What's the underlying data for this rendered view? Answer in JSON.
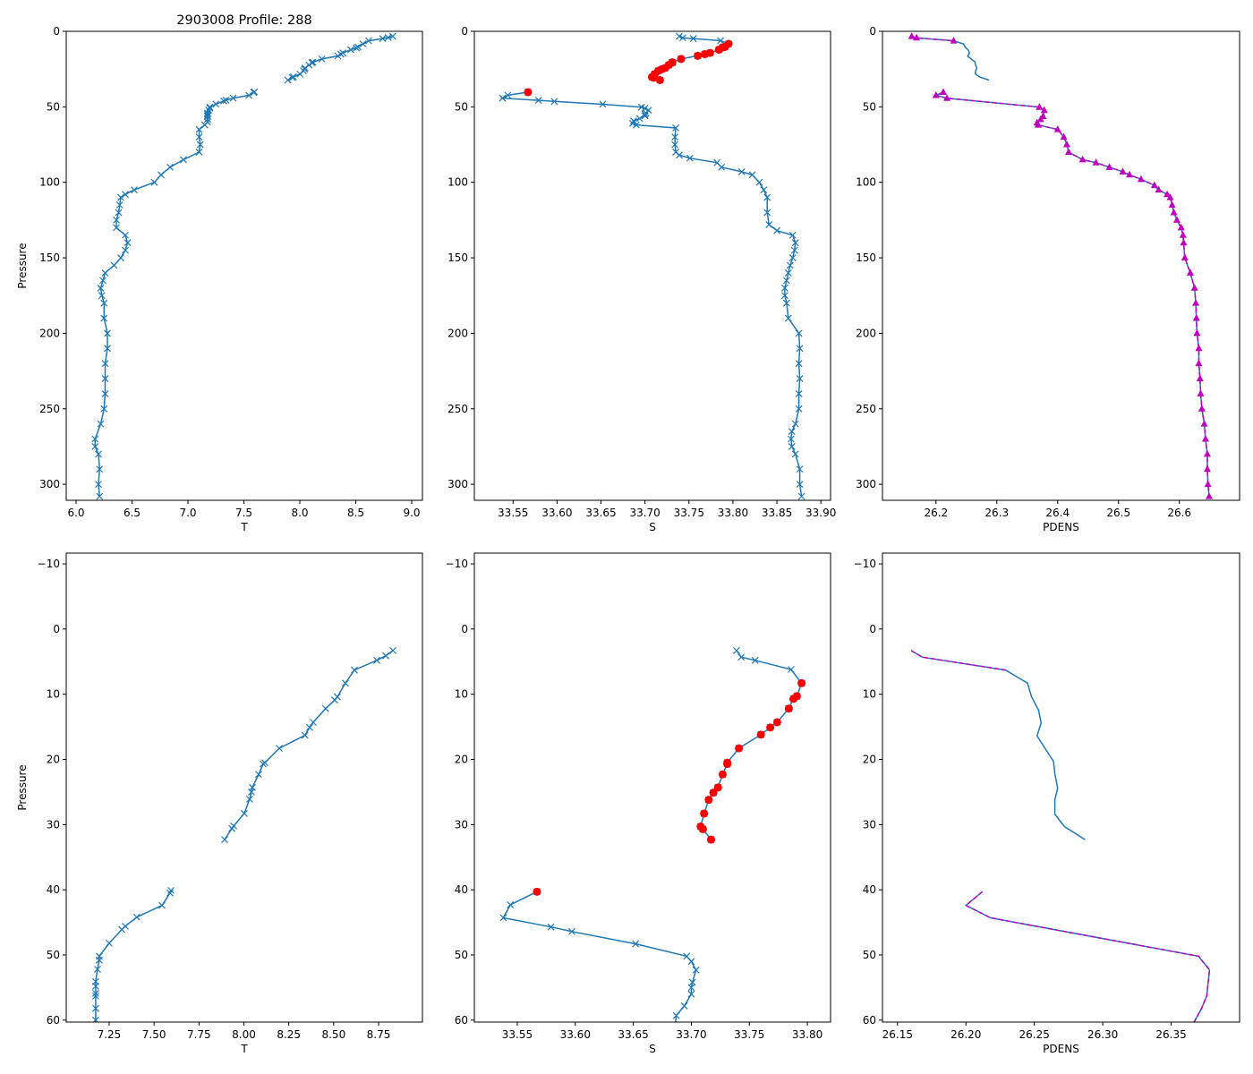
{
  "chart_data": {
    "type": "line",
    "title": "2903008 Profile: 288",
    "ylabel": "Pressure",
    "colors": {
      "line": "#1f77b4",
      "flagged": "#ff0000",
      "good_pdens": "#bf00bf"
    },
    "series": {
      "T": [
        [
          3.3,
          8.83,
          1
        ],
        [
          4.1,
          8.79,
          1
        ],
        [
          4.8,
          8.74,
          1
        ],
        [
          6.3,
          8.615,
          1
        ],
        [
          8.3,
          8.565,
          1
        ],
        [
          10.4,
          8.52,
          1
        ],
        [
          10.9,
          8.505,
          1
        ],
        [
          12.2,
          8.455,
          1
        ],
        [
          14.3,
          8.386,
          1
        ],
        [
          15.1,
          8.366,
          1
        ],
        [
          16.3,
          8.34,
          1
        ],
        [
          18.3,
          8.197,
          1
        ],
        [
          20.5,
          8.117,
          1
        ],
        [
          20.7,
          8.107,
          1
        ],
        [
          22.3,
          8.082,
          1
        ],
        [
          24.3,
          8.047,
          1
        ],
        [
          25.0,
          8.042,
          1
        ],
        [
          26.1,
          8.032,
          1
        ],
        [
          28.3,
          8.002,
          1
        ],
        [
          30.2,
          7.943,
          1
        ],
        [
          30.6,
          7.933,
          1
        ],
        [
          32.3,
          7.893,
          1
        ],
        null,
        [
          40.1,
          7.594,
          1
        ],
        [
          40.5,
          7.589,
          1
        ],
        [
          42.4,
          7.544,
          1
        ],
        [
          44.2,
          7.404,
          1
        ],
        [
          45.6,
          7.34,
          1
        ],
        [
          46.1,
          7.32,
          1
        ],
        [
          48.2,
          7.25,
          1
        ],
        [
          50.2,
          7.195,
          1
        ],
        [
          50.8,
          7.195,
          1
        ],
        [
          52.2,
          7.185,
          1
        ],
        [
          54.1,
          7.175,
          1
        ],
        [
          54.8,
          7.175,
          1
        ],
        [
          55.9,
          7.175,
          1
        ],
        [
          56.3,
          7.175,
          1
        ],
        [
          58.2,
          7.175,
          1
        ],
        [
          60.0,
          7.175,
          1
        ],
        [
          62,
          7.15,
          1
        ],
        [
          65,
          7.1,
          1
        ],
        [
          70,
          7.1,
          1
        ],
        [
          75,
          7.11,
          1
        ],
        [
          80,
          7.1,
          1
        ],
        [
          85,
          6.96,
          1
        ],
        [
          90,
          6.84,
          1
        ],
        [
          95,
          6.76,
          1
        ],
        [
          100,
          6.7,
          1
        ],
        [
          105,
          6.52,
          1
        ],
        [
          108,
          6.44,
          1
        ],
        [
          110,
          6.4,
          1
        ],
        [
          115,
          6.39,
          1
        ],
        [
          120,
          6.38,
          1
        ],
        [
          125,
          6.36,
          1
        ],
        [
          130,
          6.36,
          1
        ],
        [
          135,
          6.44,
          1
        ],
        [
          140,
          6.46,
          1
        ],
        [
          145,
          6.44,
          1
        ],
        [
          150,
          6.4,
          1
        ],
        [
          155,
          6.34,
          1
        ],
        [
          160,
          6.26,
          1
        ],
        [
          165,
          6.24,
          1
        ],
        [
          170,
          6.22,
          1
        ],
        [
          175,
          6.23,
          1
        ],
        [
          180,
          6.25,
          1
        ],
        [
          190,
          6.25,
          1
        ],
        [
          200,
          6.28,
          1
        ],
        [
          210,
          6.28,
          1
        ],
        [
          220,
          6.26,
          1
        ],
        [
          230,
          6.26,
          1
        ],
        [
          240,
          6.26,
          1
        ],
        [
          250,
          6.25,
          1
        ],
        [
          260,
          6.22,
          1
        ],
        [
          270,
          6.17,
          1
        ],
        [
          275,
          6.17,
          1
        ],
        [
          280,
          6.2,
          1
        ],
        [
          290,
          6.21,
          1
        ],
        [
          300,
          6.2,
          1
        ],
        [
          308,
          6.21,
          1
        ]
      ],
      "S": [
        [
          3.3,
          33.739,
          1
        ],
        [
          4.3,
          33.743,
          1
        ],
        [
          4.8,
          33.755,
          1
        ],
        [
          6.2,
          33.786,
          1
        ],
        [
          8.3,
          33.795,
          4
        ],
        [
          10.3,
          33.791,
          4
        ],
        [
          10.7,
          33.788,
          4
        ],
        [
          12.2,
          33.784,
          4
        ],
        [
          14.3,
          33.774,
          4
        ],
        [
          15.1,
          33.768,
          4
        ],
        [
          16.2,
          33.76,
          4
        ],
        [
          18.3,
          33.741,
          4
        ],
        [
          20.5,
          33.731,
          4
        ],
        [
          20.7,
          33.731,
          4
        ],
        [
          22.3,
          33.727,
          4
        ],
        [
          24.3,
          33.723,
          4
        ],
        [
          25.1,
          33.719,
          4
        ],
        [
          26.2,
          33.715,
          4
        ],
        [
          28.3,
          33.711,
          4
        ],
        [
          30.3,
          33.708,
          4
        ],
        [
          30.7,
          33.71,
          4
        ],
        [
          32.3,
          33.717,
          4
        ],
        null,
        [
          40.3,
          33.567,
          4
        ],
        [
          42.3,
          33.544,
          1
        ],
        [
          44.3,
          33.538,
          1
        ],
        [
          45.7,
          33.579,
          1
        ],
        [
          46.4,
          33.597,
          1
        ],
        [
          48.3,
          33.652,
          1
        ],
        [
          50.2,
          33.696,
          1
        ],
        [
          51.0,
          33.7,
          1
        ],
        [
          52.3,
          33.704,
          1
        ],
        [
          54.2,
          33.701,
          1
        ],
        [
          55.0,
          33.7,
          1
        ],
        [
          56.0,
          33.7,
          1
        ],
        [
          57.8,
          33.694,
          1
        ],
        [
          59.3,
          33.687,
          1
        ],
        [
          61,
          33.686,
          1
        ],
        [
          62,
          33.69,
          1
        ],
        [
          64,
          33.735,
          1
        ],
        [
          70,
          33.734,
          1
        ],
        [
          75,
          33.734,
          1
        ],
        [
          80,
          33.735,
          1
        ],
        [
          82,
          33.739,
          1
        ],
        [
          84,
          33.751,
          1
        ],
        [
          87,
          33.782,
          1
        ],
        [
          90,
          33.787,
          1
        ],
        [
          93,
          33.81,
          1
        ],
        [
          95,
          33.822,
          1
        ],
        [
          100,
          33.83,
          1
        ],
        [
          105,
          33.835,
          1
        ],
        [
          110,
          33.839,
          1
        ],
        [
          120,
          33.839,
          1
        ],
        [
          128,
          33.841,
          1
        ],
        [
          132,
          33.85,
          1
        ],
        [
          135,
          33.868,
          1
        ],
        [
          140,
          33.871,
          1
        ],
        [
          145,
          33.87,
          1
        ],
        [
          150,
          33.868,
          1
        ],
        [
          155,
          33.865,
          1
        ],
        [
          160,
          33.863,
          1
        ],
        [
          165,
          33.861,
          1
        ],
        [
          170,
          33.859,
          1
        ],
        [
          175,
          33.859,
          1
        ],
        [
          180,
          33.861,
          1
        ],
        [
          190,
          33.863,
          1
        ],
        [
          200,
          33.875,
          1
        ],
        [
          210,
          33.876,
          1
        ],
        [
          220,
          33.875,
          1
        ],
        [
          230,
          33.876,
          1
        ],
        [
          240,
          33.875,
          1
        ],
        [
          250,
          33.875,
          1
        ],
        [
          260,
          33.871,
          1
        ],
        [
          265,
          33.867,
          1
        ],
        [
          270,
          33.866,
          1
        ],
        [
          275,
          33.867,
          1
        ],
        [
          280,
          33.871,
          1
        ],
        [
          290,
          33.876,
          1
        ],
        [
          300,
          33.876,
          1
        ],
        [
          308,
          33.878,
          1
        ]
      ],
      "PDENS": [
        [
          3.3,
          26.16,
          1
        ],
        [
          4.3,
          26.168,
          1
        ],
        [
          6.3,
          26.229,
          1
        ],
        [
          8.3,
          26.245,
          4
        ],
        [
          10.4,
          26.248,
          4
        ],
        [
          12.4,
          26.253,
          4
        ],
        [
          14.4,
          26.255,
          4
        ],
        [
          16.4,
          26.252,
          4
        ],
        [
          20.3,
          26.264,
          4
        ],
        [
          22.2,
          26.265,
          4
        ],
        [
          24.4,
          26.267,
          4
        ],
        [
          26.2,
          26.265,
          4
        ],
        [
          28.4,
          26.265,
          4
        ],
        [
          30.3,
          26.272,
          4
        ],
        [
          32.3,
          26.287,
          4
        ],
        null,
        [
          40.3,
          26.212,
          1
        ],
        [
          42.4,
          26.2,
          1
        ],
        [
          44.3,
          26.218,
          1
        ],
        [
          50.2,
          26.37,
          1
        ],
        [
          52.3,
          26.378,
          1
        ],
        [
          56.3,
          26.376,
          1
        ],
        [
          58.3,
          26.372,
          1
        ],
        [
          60.6,
          26.366,
          1
        ],
        [
          62,
          26.368,
          1
        ],
        [
          65,
          26.4,
          1
        ],
        [
          70,
          26.41,
          1
        ],
        [
          75,
          26.415,
          1
        ],
        [
          80,
          26.418,
          1
        ],
        [
          85,
          26.441,
          1
        ],
        [
          87,
          26.463,
          1
        ],
        [
          90,
          26.485,
          1
        ],
        [
          93,
          26.507,
          1
        ],
        [
          95,
          26.518,
          1
        ],
        [
          98,
          26.537,
          1
        ],
        [
          102,
          26.559,
          1
        ],
        [
          105,
          26.566,
          1
        ],
        [
          108,
          26.58,
          1
        ],
        [
          110,
          26.585,
          1
        ],
        [
          115,
          26.588,
          1
        ],
        [
          120,
          26.591,
          1
        ],
        [
          125,
          26.596,
          1
        ],
        [
          130,
          26.603,
          1
        ],
        [
          135,
          26.606,
          1
        ],
        [
          140,
          26.607,
          1
        ],
        [
          150,
          26.609,
          1
        ],
        [
          160,
          26.618,
          1
        ],
        [
          170,
          26.625,
          1
        ],
        [
          180,
          26.627,
          1
        ],
        [
          190,
          26.628,
          1
        ],
        [
          200,
          26.629,
          1
        ],
        [
          210,
          26.632,
          1
        ],
        [
          220,
          26.632,
          1
        ],
        [
          230,
          26.634,
          1
        ],
        [
          240,
          26.635,
          1
        ],
        [
          250,
          26.637,
          1
        ],
        [
          260,
          26.641,
          1
        ],
        [
          270,
          26.643,
          1
        ],
        [
          280,
          26.646,
          1
        ],
        [
          290,
          26.646,
          1
        ],
        [
          300,
          26.647,
          1
        ],
        [
          308,
          26.649,
          1
        ]
      ]
    },
    "panels": [
      {
        "var": "T",
        "xlabel": "T",
        "ylabel": "Pressure",
        "title": "2903008 Profile: 288",
        "xlim": [
          5.912,
          9.096
        ],
        "ylim": [
          310.6,
          0
        ],
        "xticks": [
          6.0,
          6.5,
          7.0,
          7.5,
          8.0,
          8.5,
          9.0
        ],
        "xtick_labels": [
          "6.0",
          "6.5",
          "7.0",
          "7.5",
          "8.0",
          "8.5",
          "9.0"
        ],
        "yticks": [
          0,
          50,
          100,
          150,
          200,
          250,
          300
        ],
        "ytick_labels": [
          "0",
          "50",
          "100",
          "150",
          "200",
          "250",
          "300"
        ]
      },
      {
        "var": "S",
        "xlabel": "S",
        "xlim": [
          33.506,
          33.911
        ],
        "ylim": [
          310.6,
          0
        ],
        "xticks": [
          33.55,
          33.6,
          33.65,
          33.7,
          33.75,
          33.8,
          33.85,
          33.9
        ],
        "xtick_labels": [
          "33.55",
          "33.60",
          "33.65",
          "33.70",
          "33.75",
          "33.80",
          "33.85",
          "33.90"
        ],
        "yticks": [
          0,
          50,
          100,
          150,
          200,
          250,
          300
        ],
        "ytick_labels": [
          "0",
          "50",
          "100",
          "150",
          "200",
          "250",
          "300"
        ]
      },
      {
        "var": "PDENS",
        "xlabel": "PDENS",
        "pdens_markers": true,
        "xlim": [
          26.112,
          26.699
        ],
        "ylim": [
          310.6,
          0
        ],
        "xticks": [
          26.2,
          26.3,
          26.4,
          26.5,
          26.6
        ],
        "xtick_labels": [
          "26.2",
          "26.3",
          "26.4",
          "26.5",
          "26.6"
        ],
        "yticks": [
          0,
          50,
          100,
          150,
          200,
          250,
          300
        ],
        "ytick_labels": [
          "0",
          "50",
          "100",
          "150",
          "200",
          "250",
          "300"
        ]
      },
      {
        "var": "T",
        "xlabel": "T",
        "ylabel": "Pressure",
        "xlim": [
          7.011,
          8.994
        ],
        "ylim": [
          60.3,
          -11.65
        ],
        "xticks": [
          7.25,
          7.5,
          7.75,
          8.0,
          8.25,
          8.5,
          8.75
        ],
        "xtick_labels": [
          "7.25",
          "7.50",
          "7.75",
          "8.00",
          "8.25",
          "8.50",
          "8.75"
        ],
        "yticks": [
          -10,
          0,
          10,
          20,
          30,
          40,
          50,
          60
        ],
        "ytick_labels": [
          "−10",
          "0",
          "10",
          "20",
          "30",
          "40",
          "50",
          "60"
        ]
      },
      {
        "var": "S",
        "xlabel": "S",
        "xlim": [
          33.513,
          33.82
        ],
        "ylim": [
          60.3,
          -11.65
        ],
        "xticks": [
          33.55,
          33.6,
          33.65,
          33.7,
          33.75,
          33.8
        ],
        "xtick_labels": [
          "33.55",
          "33.60",
          "33.65",
          "33.70",
          "33.75",
          "33.80"
        ],
        "yticks": [
          -10,
          0,
          10,
          20,
          30,
          40,
          50,
          60
        ],
        "ytick_labels": [
          "−10",
          "0",
          "10",
          "20",
          "30",
          "40",
          "50",
          "60"
        ]
      },
      {
        "var": "PDENS",
        "xlabel": "PDENS",
        "pdens_markers": false,
        "xlim": [
          26.139,
          26.4
        ],
        "ylim": [
          60.3,
          -11.65
        ],
        "xticks": [
          26.15,
          26.2,
          26.25,
          26.3,
          26.35
        ],
        "xtick_labels": [
          "26.15",
          "26.20",
          "26.25",
          "26.30",
          "26.35"
        ],
        "yticks": [
          -10,
          0,
          10,
          20,
          30,
          40,
          50,
          60
        ],
        "ytick_labels": [
          "−10",
          "0",
          "10",
          "20",
          "30",
          "40",
          "50",
          "60"
        ]
      }
    ]
  }
}
